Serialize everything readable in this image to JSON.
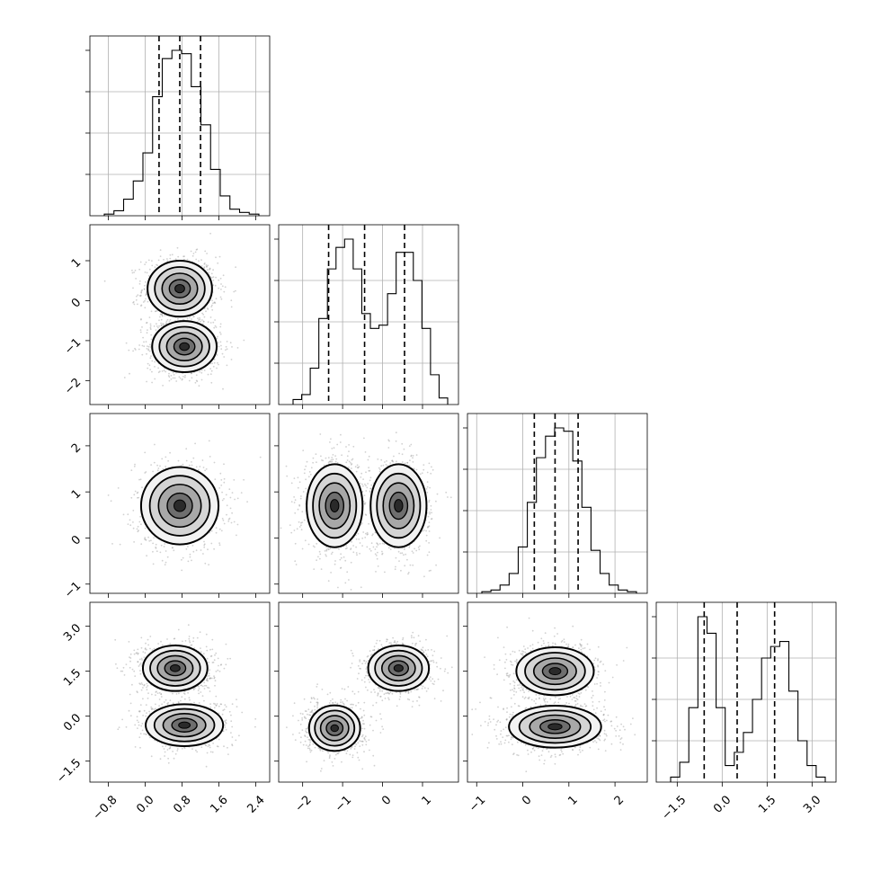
{
  "chart_data": {
    "type": "corner",
    "grid": true,
    "parameters": [
      {
        "range": [
          -1.2,
          2.7
        ],
        "ticks": [
          "−0.8",
          "0.0",
          "0.8",
          "1.6",
          "2.4"
        ],
        "tick_values": [
          -0.8,
          0.0,
          0.8,
          1.6,
          2.4
        ],
        "quantiles": [
          0.3,
          0.75,
          1.2
        ],
        "hist": [
          0.01,
          0.03,
          0.1,
          0.21,
          0.38,
          0.72,
          0.95,
          1.0,
          0.98,
          0.78,
          0.55,
          0.28,
          0.12,
          0.04,
          0.02,
          0.01
        ]
      },
      {
        "range": [
          -2.6,
          1.9
        ],
        "ticks": [
          "−2",
          "−1",
          "0",
          "1"
        ],
        "tick_values": [
          -2,
          -1,
          0,
          1
        ],
        "quantiles": [
          -1.35,
          -0.45,
          0.55
        ],
        "hist": [
          0.03,
          0.06,
          0.22,
          0.52,
          0.82,
          0.95,
          1.0,
          0.82,
          0.55,
          0.46,
          0.48,
          0.67,
          0.92,
          0.92,
          0.75,
          0.46,
          0.18,
          0.04
        ]
      },
      {
        "range": [
          -1.2,
          2.7
        ],
        "ticks": [
          "−1",
          "0",
          "1",
          "2"
        ],
        "tick_values": [
          -1,
          0,
          1,
          2
        ],
        "quantiles": [
          0.25,
          0.7,
          1.2
        ],
        "hist": [
          0.01,
          0.02,
          0.05,
          0.12,
          0.28,
          0.55,
          0.82,
          0.95,
          1.0,
          0.98,
          0.8,
          0.52,
          0.26,
          0.12,
          0.05,
          0.02,
          0.01
        ]
      },
      {
        "range": [
          -2.2,
          3.8
        ],
        "ticks": [
          "−1.5",
          "0.0",
          "1.5",
          "3.0"
        ],
        "tick_values": [
          -1.5,
          0.0,
          1.5,
          3.0
        ],
        "quantiles": [
          -0.6,
          0.5,
          1.75
        ],
        "hist": [
          0.03,
          0.12,
          0.45,
          1.0,
          0.9,
          0.45,
          0.1,
          0.18,
          0.3,
          0.5,
          0.75,
          0.82,
          0.85,
          0.55,
          0.25,
          0.1,
          0.03
        ]
      }
    ],
    "pair_blobs": {
      "1-0": [
        {
          "mx": 0.75,
          "my": 0.3,
          "sx": 0.35,
          "sy": 0.35
        },
        {
          "mx": 0.85,
          "my": -1.15,
          "sx": 0.35,
          "sy": 0.32
        }
      ],
      "2-0": [
        {
          "mx": 0.75,
          "my": 0.7,
          "sx": 0.42,
          "sy": 0.42
        }
      ],
      "2-1": [
        {
          "mx": -1.2,
          "my": 0.7,
          "sx": 0.35,
          "sy": 0.45
        },
        {
          "mx": 0.4,
          "my": 0.7,
          "sx": 0.35,
          "sy": 0.45
        }
      ],
      "3-0": [
        {
          "mx": 0.65,
          "my": 1.6,
          "sx": 0.35,
          "sy": 0.38
        },
        {
          "mx": 0.85,
          "my": -0.3,
          "sx": 0.42,
          "sy": 0.35
        }
      ],
      "3-1": [
        {
          "mx": -1.2,
          "my": -0.4,
          "sx": 0.32,
          "sy": 0.38
        },
        {
          "mx": 0.4,
          "my": 1.6,
          "sx": 0.38,
          "sy": 0.38
        }
      ],
      "3-2": [
        {
          "mx": 0.7,
          "my": 1.5,
          "sx": 0.42,
          "sy": 0.4
        },
        {
          "mx": 0.7,
          "my": -0.35,
          "sx": 0.5,
          "sy": 0.35
        }
      ]
    }
  },
  "colors": {
    "axis": "#000000",
    "grid": "#b0b0b0",
    "density": "#000000",
    "points": "#9a9a9a"
  }
}
